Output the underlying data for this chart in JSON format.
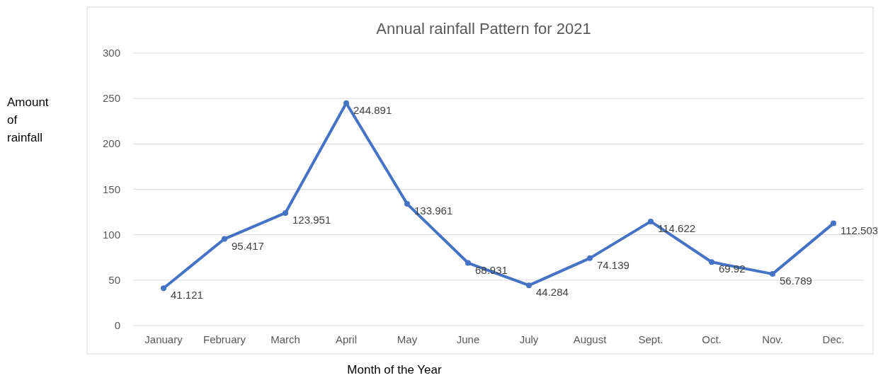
{
  "chart_data": {
    "type": "line",
    "title": "Annual rainfall Pattern for 2021",
    "xlabel": "Month of the Year",
    "ylabel": "Amount of rainfall",
    "categories": [
      "January",
      "February",
      "March",
      "April",
      "May",
      "June",
      "July",
      "August",
      "Sept.",
      "Oct.",
      "Nov.",
      "Dec."
    ],
    "series": [
      {
        "color": "#4472c4",
        "values": [
          41.121,
          95.417,
          123.951,
          244.891,
          133.961,
          68.931,
          44.284,
          74.139,
          114.622,
          69.92,
          56.789,
          112.503
        ]
      }
    ],
    "ylim": [
      0,
      300
    ],
    "yticks": [
      0,
      50,
      100,
      150,
      200,
      250,
      300
    ],
    "grid": "y",
    "marker": "circle",
    "data_labels": true
  }
}
